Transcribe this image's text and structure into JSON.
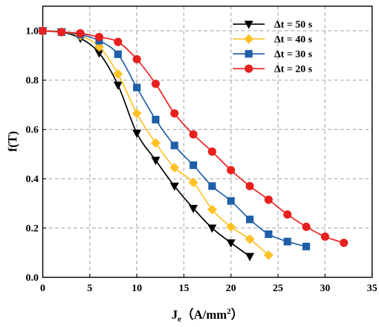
{
  "chart_data": {
    "type": "line",
    "xlabel": "J",
    "xlabel_sub": "e",
    "xlabel_unit": "（A/mm",
    "xlabel_sup": "2",
    "xlabel_close": "）",
    "ylabel": "f(T)",
    "xlim": [
      0,
      35
    ],
    "ylim": [
      0,
      1.1
    ],
    "xticks": [
      "0",
      "5",
      "10",
      "15",
      "20",
      "25",
      "30",
      "35"
    ],
    "yticks": [
      "0.0",
      "0.2",
      "0.4",
      "0.6",
      "0.8",
      "1.0"
    ],
    "grid": true,
    "legend_position": "top-right",
    "series": [
      {
        "name": "Δt = 50  s",
        "color": "#000000",
        "marker": "triangle-down",
        "x": [
          0,
          2,
          4,
          6,
          8,
          10,
          12,
          14,
          16,
          18,
          20,
          22
        ],
        "y": [
          1.0,
          0.995,
          0.97,
          0.91,
          0.78,
          0.585,
          0.475,
          0.37,
          0.28,
          0.2,
          0.14,
          0.085
        ]
      },
      {
        "name": "Δt = 40  s",
        "color": "#ffc125",
        "marker": "diamond",
        "x": [
          0,
          2,
          4,
          6,
          8,
          10,
          12,
          14,
          16,
          18,
          20,
          22,
          24
        ],
        "y": [
          1.0,
          0.995,
          0.98,
          0.935,
          0.825,
          0.665,
          0.545,
          0.445,
          0.385,
          0.275,
          0.205,
          0.155,
          0.09
        ]
      },
      {
        "name": "Δt = 30  s",
        "color": "#1f5fa8",
        "marker": "square",
        "x": [
          0,
          2,
          4,
          6,
          8,
          10,
          12,
          14,
          16,
          18,
          20,
          22,
          24,
          26,
          28
        ],
        "y": [
          1.0,
          0.995,
          0.985,
          0.96,
          0.905,
          0.77,
          0.64,
          0.535,
          0.455,
          0.37,
          0.31,
          0.235,
          0.175,
          0.145,
          0.125
        ]
      },
      {
        "name": "Δt = 20  s",
        "color": "#e8201e",
        "marker": "circle",
        "x": [
          0,
          2,
          4,
          6,
          8,
          10,
          12,
          14,
          16,
          18,
          20,
          22,
          24,
          26,
          28,
          30,
          32
        ],
        "y": [
          1.0,
          0.995,
          0.99,
          0.975,
          0.955,
          0.885,
          0.785,
          0.665,
          0.58,
          0.51,
          0.435,
          0.37,
          0.315,
          0.255,
          0.205,
          0.165,
          0.14
        ]
      }
    ]
  }
}
